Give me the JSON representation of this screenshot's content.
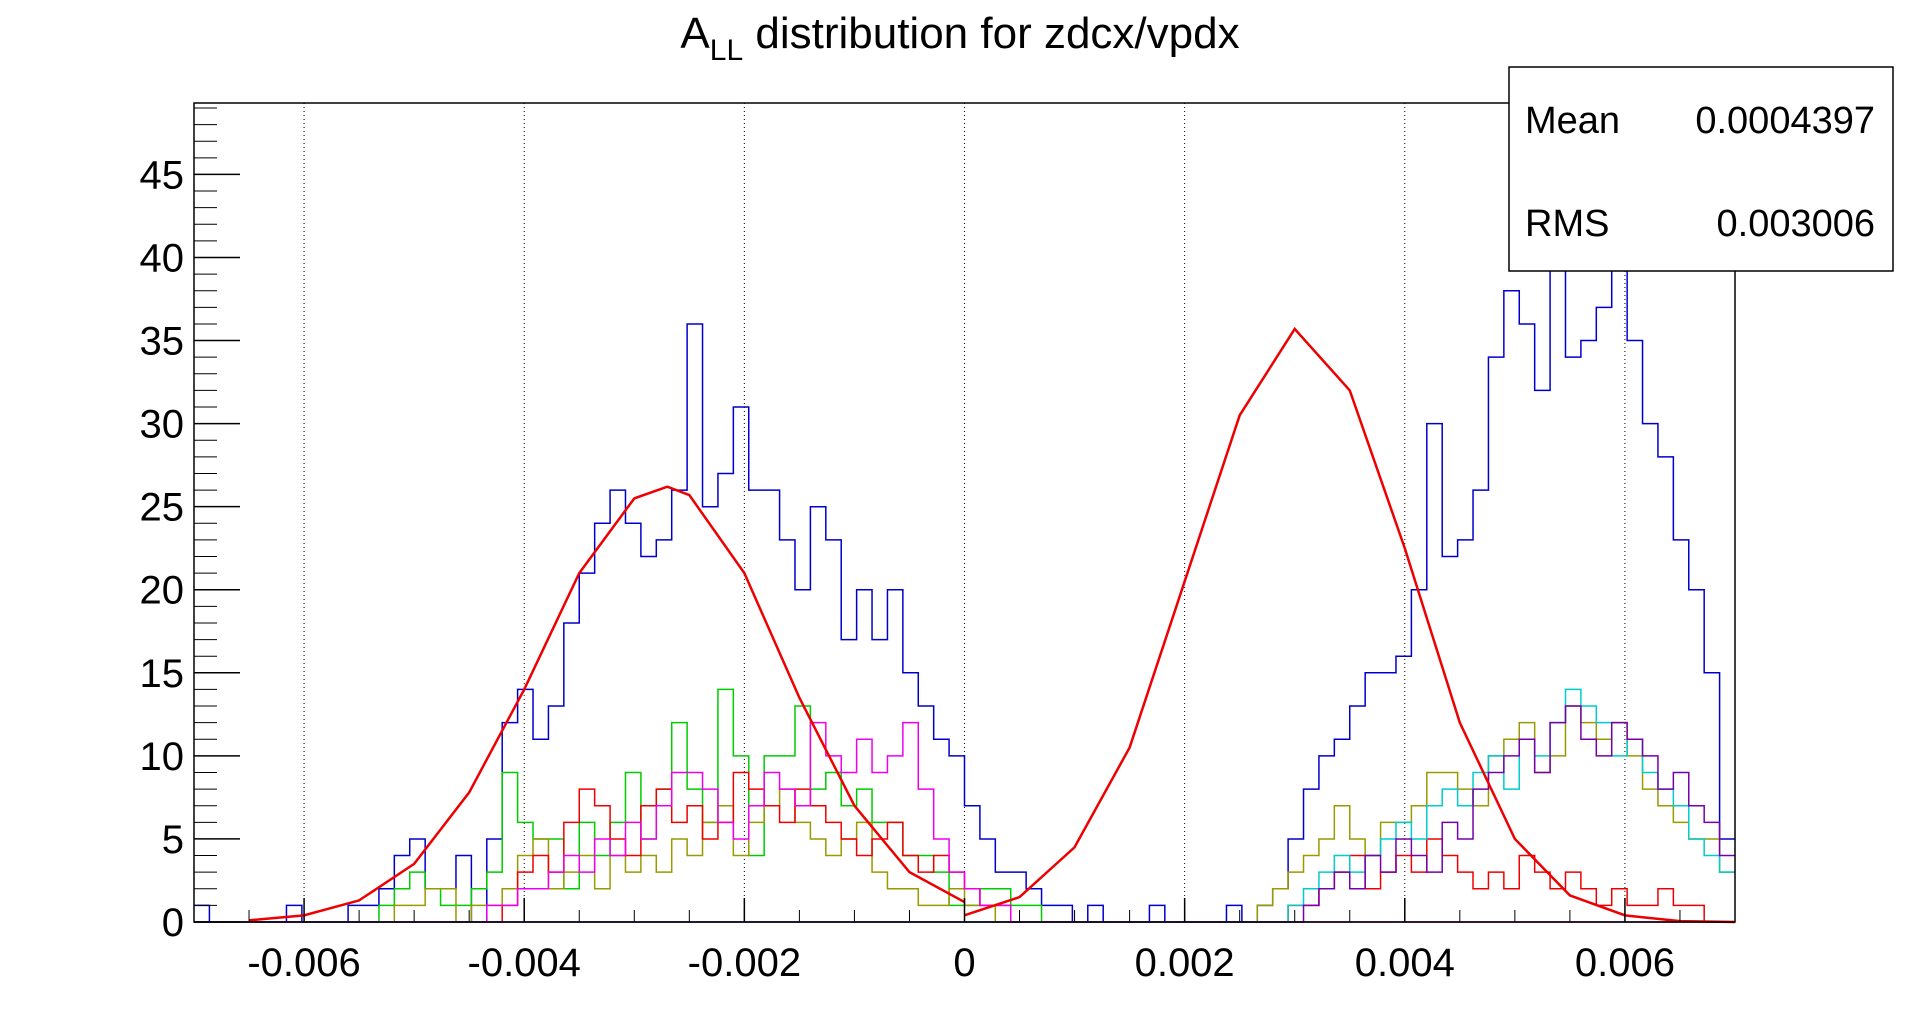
{
  "chart_data": {
    "type": "histogram",
    "title_main": "A",
    "title_sub": "LL",
    "title_rest": " distribution for zdcx/vpdx",
    "xlabel": "",
    "ylabel": "",
    "xlim": [
      -0.007,
      0.007
    ],
    "ylim": [
      0,
      49.3
    ],
    "x_ticks": [
      -0.006,
      -0.004,
      -0.002,
      0,
      0.002,
      0.004,
      0.006
    ],
    "x_tick_labels": [
      "-0.006",
      "-0.004",
      "-0.002",
      "0",
      "0.002",
      "0.004",
      "0.006"
    ],
    "y_ticks": [
      0,
      5,
      10,
      15,
      20,
      25,
      30,
      35,
      40,
      45
    ],
    "y_tick_labels": [
      "0",
      "5",
      "10",
      "15",
      "20",
      "25",
      "30",
      "35",
      "40",
      "45"
    ],
    "grid": "vertical-dotted",
    "bin_edges": {
      "start": -0.007,
      "width": 0.00014,
      "count": 100
    },
    "stats_box": {
      "placement": "top-right",
      "rows": [
        {
          "label": "Mean",
          "value": "0.0004397"
        },
        {
          "label": "RMS",
          "value": "0.003006"
        }
      ]
    },
    "series": [
      {
        "color": "#0000cc",
        "style": "step",
        "values": [
          1,
          0,
          0,
          0,
          0,
          0,
          1,
          0,
          0,
          0,
          1,
          1,
          2,
          4,
          5,
          2,
          2,
          4,
          0,
          5,
          12,
          14,
          11,
          13,
          18,
          21,
          24,
          26,
          24,
          22,
          23,
          26,
          36,
          25,
          27,
          31,
          26,
          26,
          23,
          20,
          25,
          23,
          17,
          20,
          17,
          20,
          15,
          13,
          11,
          10,
          7,
          5,
          3,
          3,
          2,
          1,
          1,
          0,
          1,
          0,
          0,
          0,
          1,
          0,
          0,
          0,
          0,
          1,
          0,
          1,
          2,
          5,
          8,
          10,
          11,
          13,
          15,
          15,
          16,
          20,
          30,
          22,
          23,
          26,
          34,
          38,
          36,
          32,
          47,
          34,
          35,
          37,
          40,
          35,
          30,
          28,
          23,
          20,
          15,
          5
        ]
      },
      {
        "color": "#00cc00",
        "style": "step",
        "values": [
          0,
          0,
          0,
          0,
          0,
          0,
          0,
          0,
          0,
          0,
          0,
          0,
          1,
          2,
          3,
          2,
          1,
          1,
          2,
          3,
          9,
          6,
          5,
          5,
          2,
          6,
          4,
          6,
          9,
          5,
          8,
          12,
          8,
          6,
          14,
          10,
          4,
          10,
          10,
          13,
          8,
          9,
          7,
          8,
          6,
          6,
          4,
          4,
          3,
          1,
          1,
          2,
          2,
          1,
          1,
          0,
          0,
          0,
          0,
          0,
          0,
          0,
          0,
          0,
          0,
          0,
          0,
          0,
          0,
          0,
          0,
          0,
          0,
          0,
          0,
          0,
          0,
          0,
          0,
          0,
          0,
          0,
          0,
          0,
          0,
          0,
          0,
          0,
          0,
          0,
          0,
          0,
          0,
          0,
          0,
          0,
          0,
          0,
          0,
          0
        ]
      },
      {
        "color": "#999900",
        "style": "step",
        "values": [
          0,
          0,
          0,
          0,
          0,
          0,
          0,
          0,
          0,
          0,
          0,
          0,
          0,
          1,
          1,
          2,
          2,
          0,
          1,
          1,
          2,
          4,
          5,
          2,
          3,
          4,
          2,
          4,
          3,
          4,
          3,
          5,
          4,
          6,
          7,
          4,
          6,
          7,
          8,
          6,
          5,
          4,
          5,
          6,
          3,
          2,
          2,
          1,
          1,
          2,
          1,
          1,
          0,
          0,
          0,
          0,
          0,
          0,
          0,
          0,
          0,
          0,
          0,
          0,
          0,
          0,
          0,
          0,
          0,
          1,
          2,
          3,
          4,
          5,
          7,
          5,
          4,
          6,
          6,
          7,
          9,
          9,
          8,
          7,
          10,
          11,
          12,
          9,
          10,
          13,
          12,
          11,
          12,
          10,
          8,
          7,
          6,
          5,
          5,
          3
        ]
      },
      {
        "color": "#ee0000",
        "style": "step",
        "values": [
          0,
          0,
          0,
          0,
          0,
          0,
          0,
          0,
          0,
          0,
          0,
          0,
          0,
          0,
          0,
          0,
          0,
          0,
          0,
          0,
          1,
          3,
          4,
          3,
          6,
          8,
          7,
          5,
          4,
          7,
          8,
          6,
          7,
          5,
          6,
          9,
          8,
          7,
          6,
          8,
          7,
          6,
          5,
          4,
          5,
          6,
          4,
          3,
          4,
          3,
          2,
          1,
          1,
          0,
          0,
          0,
          0,
          0,
          0,
          0,
          0,
          0,
          0,
          0,
          0,
          0,
          0,
          0,
          0,
          0,
          0,
          1,
          1,
          2,
          3,
          4,
          2,
          3,
          4,
          3,
          5,
          4,
          3,
          2,
          3,
          2,
          4,
          3,
          2,
          3,
          2,
          1,
          2,
          1,
          1,
          2,
          1,
          1,
          0,
          0
        ]
      },
      {
        "color": "#ee00ee",
        "style": "step",
        "values": [
          0,
          0,
          0,
          0,
          0,
          0,
          0,
          0,
          0,
          0,
          0,
          0,
          0,
          0,
          0,
          0,
          0,
          0,
          0,
          1,
          1,
          2,
          2,
          3,
          4,
          3,
          5,
          4,
          6,
          5,
          7,
          9,
          9,
          8,
          6,
          5,
          7,
          9,
          8,
          7,
          12,
          10,
          9,
          11,
          9,
          10,
          12,
          8,
          5,
          3,
          2,
          1,
          1,
          0,
          0,
          0,
          0,
          0,
          0,
          0,
          0,
          0,
          0,
          0,
          0,
          0,
          0,
          0,
          0,
          0,
          0,
          0,
          0,
          0,
          0,
          0,
          0,
          0,
          0,
          0,
          0,
          0,
          0,
          0,
          0,
          0,
          0,
          0,
          0,
          0,
          0,
          0,
          0,
          0,
          0,
          0,
          0,
          0,
          0,
          0
        ]
      },
      {
        "color": "#00cccc",
        "style": "step",
        "values": [
          0,
          0,
          0,
          0,
          0,
          0,
          0,
          0,
          0,
          0,
          0,
          0,
          0,
          0,
          0,
          0,
          0,
          0,
          0,
          0,
          0,
          0,
          0,
          0,
          0,
          0,
          0,
          0,
          0,
          0,
          0,
          0,
          0,
          0,
          0,
          0,
          0,
          0,
          0,
          0,
          0,
          0,
          0,
          0,
          0,
          0,
          0,
          0,
          0,
          0,
          0,
          0,
          0,
          0,
          0,
          0,
          0,
          0,
          0,
          0,
          0,
          0,
          0,
          0,
          0,
          0,
          0,
          0,
          0,
          0,
          0,
          1,
          2,
          3,
          4,
          3,
          4,
          5,
          6,
          5,
          7,
          8,
          7,
          9,
          10,
          8,
          11,
          10,
          12,
          14,
          13,
          12,
          10,
          11,
          9,
          8,
          7,
          5,
          4,
          3
        ]
      },
      {
        "color": "#7700aa",
        "style": "step",
        "values": [
          0,
          0,
          0,
          0,
          0,
          0,
          0,
          0,
          0,
          0,
          0,
          0,
          0,
          0,
          0,
          0,
          0,
          0,
          0,
          0,
          0,
          0,
          0,
          0,
          0,
          0,
          0,
          0,
          0,
          0,
          0,
          0,
          0,
          0,
          0,
          0,
          0,
          0,
          0,
          0,
          0,
          0,
          0,
          0,
          0,
          0,
          0,
          0,
          0,
          0,
          0,
          0,
          0,
          0,
          0,
          0,
          0,
          0,
          0,
          0,
          0,
          0,
          0,
          0,
          0,
          0,
          0,
          0,
          0,
          0,
          0,
          0,
          1,
          2,
          3,
          2,
          4,
          3,
          5,
          4,
          3,
          6,
          5,
          8,
          9,
          10,
          11,
          9,
          12,
          13,
          11,
          10,
          12,
          11,
          10,
          8,
          9,
          7,
          6,
          4
        ]
      },
      {
        "name": "",
        "color": "#ee0000",
        "style": "curve",
        "x": [
          -0.0065,
          -0.006,
          -0.0055,
          -0.005,
          -0.0045,
          -0.004,
          -0.0035,
          -0.003,
          -0.0027,
          -0.0025,
          -0.002,
          -0.0015,
          -0.001,
          -0.0005,
          0.0
        ],
        "y": [
          0.1,
          0.4,
          1.3,
          3.5,
          7.8,
          14.0,
          21.0,
          25.5,
          26.2,
          25.7,
          21.0,
          13.5,
          7.0,
          3.0,
          1.2
        ]
      },
      {
        "name": "",
        "color": "#ee0000",
        "style": "curve",
        "x": [
          0.0,
          0.0005,
          0.001,
          0.0015,
          0.002,
          0.0025,
          0.003,
          0.0035,
          0.004,
          0.0045,
          0.005,
          0.0055,
          0.006,
          0.0065,
          0.007
        ],
        "y": [
          0.4,
          1.5,
          4.5,
          10.5,
          20.5,
          30.5,
          35.7,
          32.0,
          22.5,
          12.0,
          5.0,
          1.6,
          0.4,
          0.05,
          0.0
        ]
      }
    ]
  }
}
